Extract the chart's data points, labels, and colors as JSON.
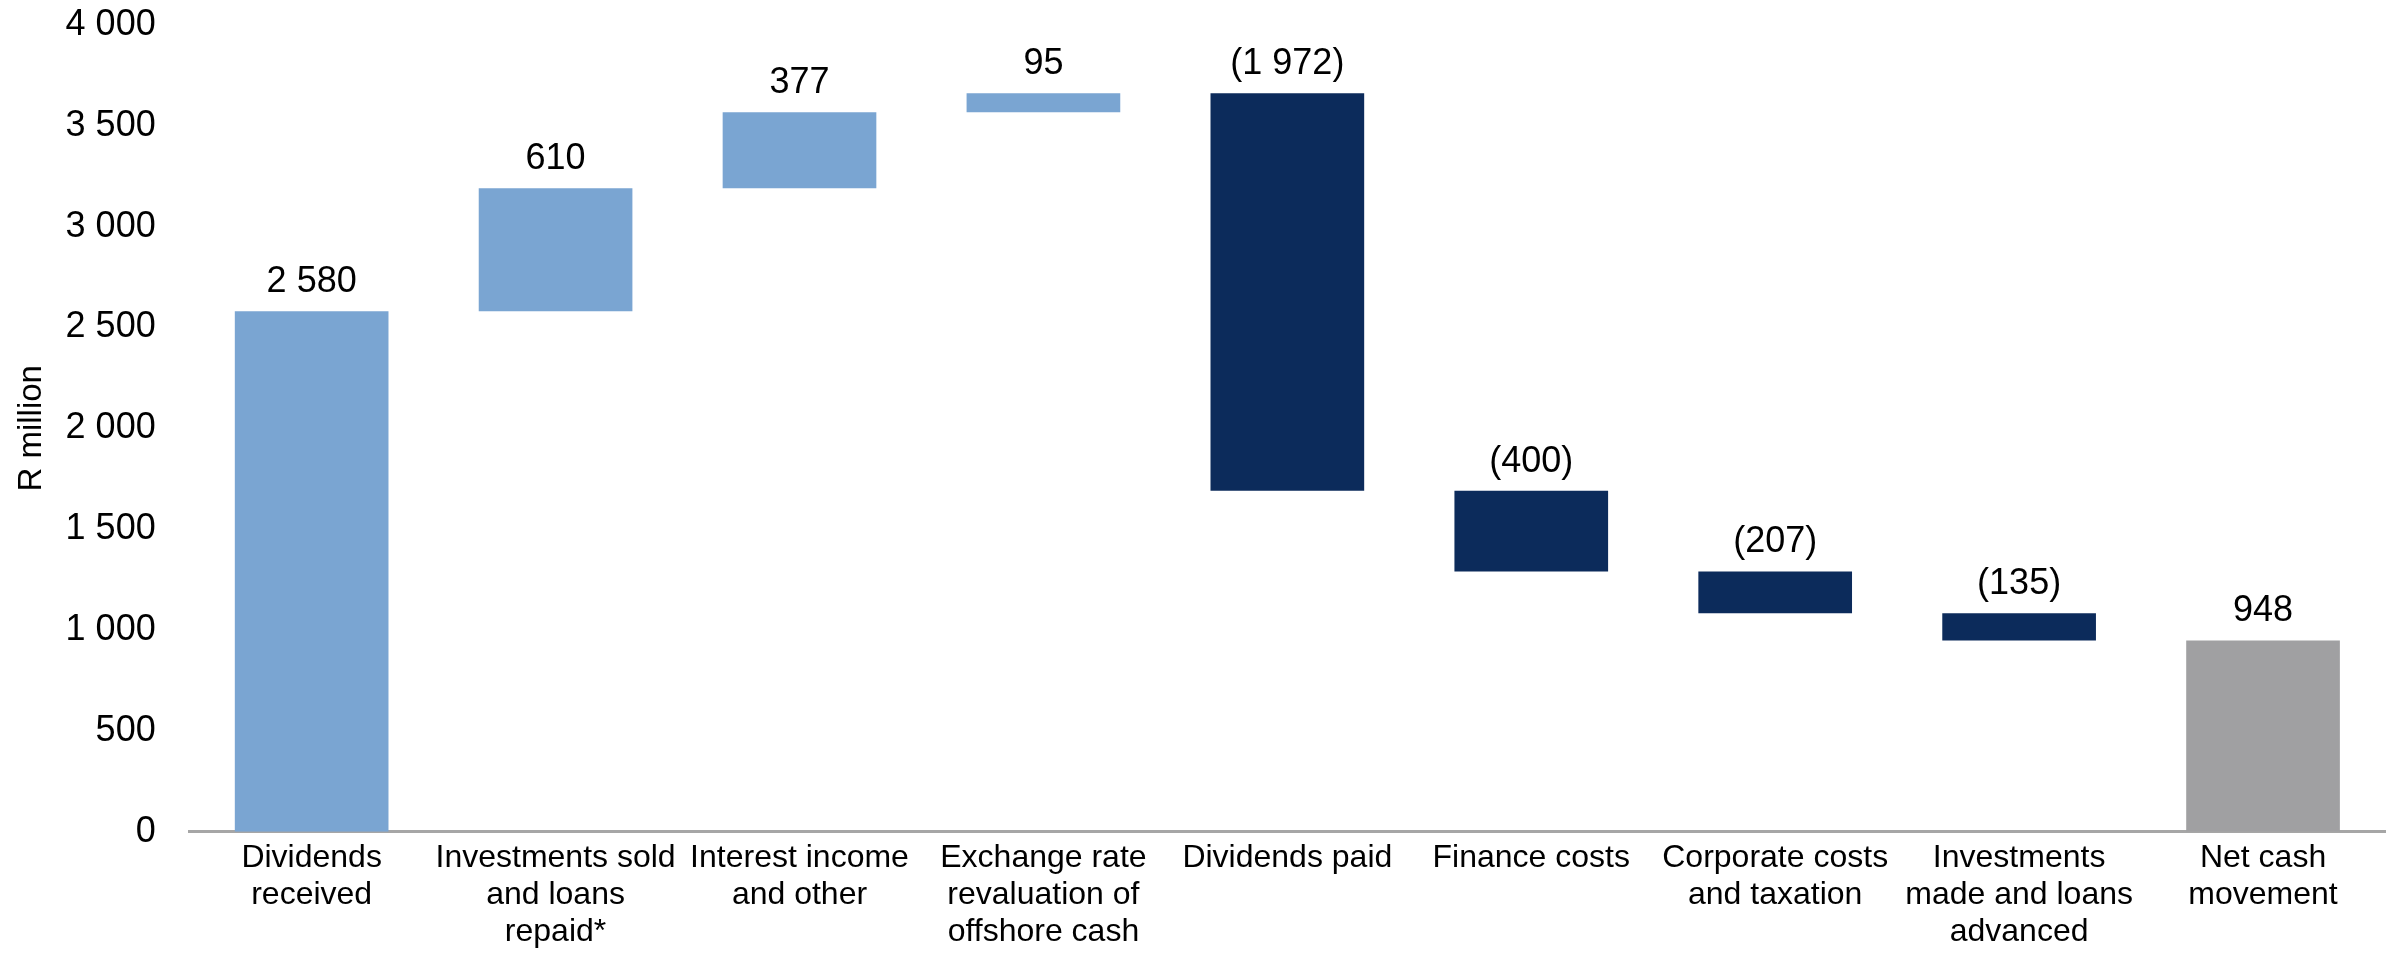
{
  "chart_data": {
    "type": "bar",
    "ylabel": "R million",
    "categories": [
      "Dividends received",
      "Investments sold and loans repaid*",
      "Interest income and other",
      "Exchange rate revaluation of offshore cash",
      "Dividends paid",
      "Finance costs",
      "Corporate costs and taxation",
      "Investments made and loans advanced",
      "Net cash movement"
    ],
    "values": [
      2580,
      610,
      377,
      95,
      -1972,
      -400,
      -207,
      -135,
      948
    ],
    "base": [
      0,
      2580,
      3190,
      3567,
      3662,
      1690,
      1290,
      1083,
      0
    ],
    "colors": [
      "#7aa5d2",
      "#7aa5d2",
      "#7aa5d2",
      "#7aa5d2",
      "#0c2b5b",
      "#0c2b5b",
      "#0c2b5b",
      "#0c2b5b",
      "#a0a0a2"
    ],
    "value_labels": [
      "2 580",
      "610",
      "377",
      "95",
      "(1 972)",
      "(400)",
      "(207)",
      "(135)",
      "948"
    ],
    "ylim": [
      0,
      4000
    ],
    "yticks": [
      0,
      500,
      {
        "value": 1000,
        "label": "1 000"
      },
      {
        "value": 1500,
        "label": "1 500"
      },
      {
        "value": 2000,
        "label": "2 000"
      },
      {
        "value": 2500,
        "label": "2 500"
      },
      {
        "value": 3000,
        "label": "3 000"
      },
      {
        "value": 3500,
        "label": "3 500"
      },
      {
        "value": 4000,
        "label": "4 000"
      }
    ],
    "grid": false,
    "legend": false
  }
}
